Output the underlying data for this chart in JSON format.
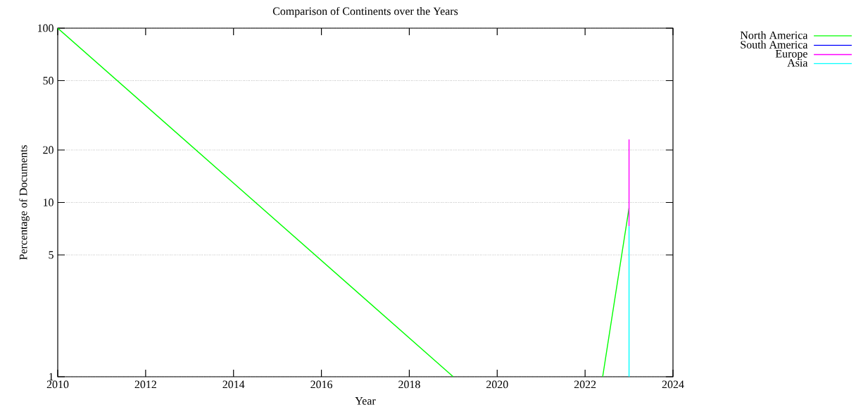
{
  "chart_data": {
    "type": "line",
    "title": "Comparison of Continents over the Years",
    "xlabel": "Year",
    "ylabel": "Percentage of Documents",
    "series": [
      {
        "name": "North America",
        "color": "#00ff00",
        "x": [
          2010,
          2019,
          2021,
          2022.4,
          2023
        ],
        "values": [
          100,
          1,
          null,
          1,
          9.3
        ]
      },
      {
        "name": "South America",
        "color": "#0000ff"
      },
      {
        "name": "Europe",
        "color": "#ff00ff",
        "x": [
          2023,
          2023
        ],
        "values": [
          7.3,
          23
        ]
      },
      {
        "name": "Asia",
        "color": "#00ffff",
        "x": [
          2023,
          2023
        ],
        "values": [
          1,
          7.3
        ]
      }
    ],
    "xlim": [
      2010,
      2024
    ],
    "xticks": [
      2010,
      2012,
      2014,
      2016,
      2018,
      2020,
      2022,
      2024
    ],
    "ylim": [
      1,
      100
    ],
    "yticks": [
      1,
      5,
      10,
      20,
      50,
      100
    ],
    "log": "y",
    "grid": "y",
    "legend": "top right",
    "line_style": "solid",
    "marker": "none"
  }
}
